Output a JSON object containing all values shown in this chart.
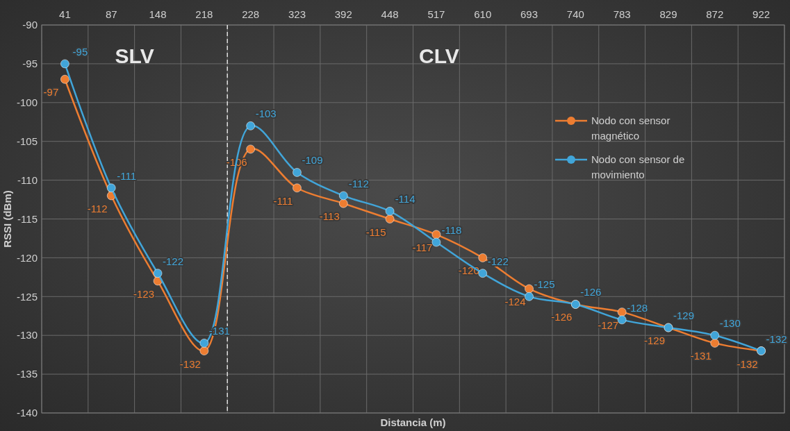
{
  "chart_data": {
    "type": "line",
    "xlabel": "Distancia (m)",
    "ylabel": "RSSI (dBm)",
    "categories": [
      "41",
      "87",
      "148",
      "218",
      "228",
      "323",
      "392",
      "448",
      "517",
      "610",
      "693",
      "740",
      "783",
      "829",
      "872",
      "922"
    ],
    "series": [
      {
        "name": "Nodo con sensor magnético",
        "color": "#ed7d31",
        "values": [
          -97,
          -112,
          -123,
          -132,
          -106,
          -111,
          -113,
          -115,
          -117,
          -120,
          -124,
          -126,
          -127,
          -129,
          -131,
          -132
        ]
      },
      {
        "name": "Nodo con sensor de movimiento",
        "color": "#41a5d9",
        "values": [
          -95,
          -111,
          -122,
          -131,
          -103,
          -109,
          -112,
          -114,
          -118,
          -122,
          -125,
          -126,
          -128,
          -129,
          -130,
          -132
        ]
      }
    ],
    "ylim": [
      -140,
      -90
    ],
    "yticks": [
      -140,
      -135,
      -130,
      -125,
      -120,
      -115,
      -110,
      -105,
      -100,
      -95,
      -90
    ],
    "grid": true,
    "legend": "right",
    "marker": "circle",
    "line_style": "solid",
    "data_labels": true,
    "ref_lines": [
      {
        "axis": "x",
        "value": "228",
        "color": "#dddddd",
        "line_style": "dashed"
      }
    ],
    "annotations": [
      "SLV",
      "CLV"
    ]
  }
}
